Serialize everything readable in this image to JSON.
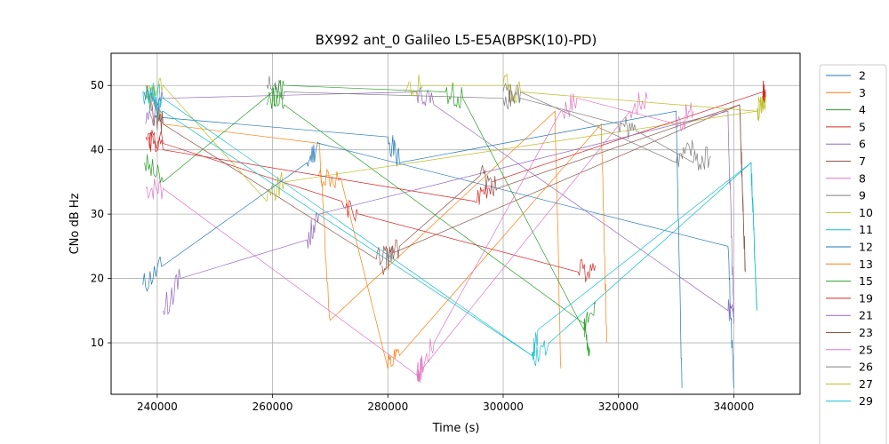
{
  "chart_data": {
    "type": "line",
    "title": "BX992 ant_0 Galileo L5-E5A(BPSK(10)-PD)",
    "xlabel": "Time (s)",
    "ylabel": "CNo dB Hz",
    "xlim": [
      232000,
      351500
    ],
    "ylim": [
      2,
      55
    ],
    "xticks": [
      240000,
      260000,
      280000,
      300000,
      320000,
      340000
    ],
    "yticks": [
      10,
      20,
      30,
      40,
      50
    ],
    "grid": true,
    "legend_position": "right-outside",
    "series": [
      {
        "name": "2",
        "color": "#1f77b4",
        "x": [
          237500,
          241000,
          280000,
          282000,
          330000,
          331000
        ],
        "y": [
          49,
          45,
          42,
          38,
          46,
          3
        ]
      },
      {
        "name": "3",
        "color": "#ff7f0e",
        "x": [
          238000,
          241000,
          268000,
          270000,
          309000,
          310000
        ],
        "y": [
          50,
          44,
          41,
          13.5,
          46,
          6
        ]
      },
      {
        "name": "4",
        "color": "#2ca02c",
        "x": [
          237800,
          241000,
          260000,
          262000,
          314000,
          315000
        ],
        "y": [
          38,
          35,
          49,
          47,
          13,
          9
        ]
      },
      {
        "name": "5",
        "color": "#d62728",
        "x": [
          238500,
          241000,
          272000,
          275000,
          313000,
          316000
        ],
        "y": [
          42,
          41,
          32,
          30,
          21,
          22
        ]
      },
      {
        "name": "6",
        "color": "#9467bd",
        "x": [
          238000,
          241000,
          285000,
          288000,
          339000,
          340000
        ],
        "y": [
          44,
          48,
          49,
          47,
          15,
          14
        ]
      },
      {
        "name": "7",
        "color": "#8c564b",
        "x": [
          239000,
          241000,
          278000,
          281000,
          341000,
          342000
        ],
        "y": [
          46,
          44,
          23,
          24,
          47,
          21
        ]
      },
      {
        "name": "8",
        "color": "#e377c2",
        "x": [
          238000,
          241000,
          285000,
          286000,
          322000,
          325000
        ],
        "y": [
          34,
          34,
          5,
          6,
          46,
          48
        ]
      },
      {
        "name": "9",
        "color": "#7f7f7f",
        "x": [
          259000,
          262000,
          300000,
          303000,
          330000,
          333000
        ],
        "y": [
          50,
          49,
          48,
          49,
          38,
          40
        ]
      },
      {
        "name": "10",
        "color": "#bcbd22",
        "x": [
          238000,
          241000,
          259000,
          262000,
          344000,
          345500
        ],
        "y": [
          49,
          50,
          32,
          35,
          46,
          48
        ]
      },
      {
        "name": "11",
        "color": "#17becf",
        "x": [
          237500,
          241000,
          305000,
          308000,
          343000,
          344000
        ],
        "y": [
          49,
          46,
          8,
          10,
          38,
          15
        ]
      },
      {
        "name": "12",
        "color": "#1f77b4",
        "x": [
          237500,
          241000,
          266000,
          268000,
          339000,
          340000
        ],
        "y": [
          19,
          22,
          38,
          41,
          25,
          3
        ]
      },
      {
        "name": "13",
        "color": "#ff7f0e",
        "x": [
          268000,
          272000,
          280000,
          282000,
          317000,
          318000
        ],
        "y": [
          36,
          35,
          6,
          8,
          44,
          10
        ]
      },
      {
        "name": "15",
        "color": "#2ca02c",
        "x": [
          259000,
          262000,
          290000,
          293000,
          314000,
          316000
        ],
        "y": [
          47,
          50,
          49,
          48,
          12,
          16
        ]
      },
      {
        "name": "19",
        "color": "#d62728",
        "x": [
          238000,
          241000,
          295000,
          298000,
          345000,
          345500
        ],
        "y": [
          42,
          40,
          32,
          35,
          49,
          48
        ]
      },
      {
        "name": "21",
        "color": "#9467bd",
        "x": [
          241000,
          244000,
          266000,
          268000,
          339000,
          340000
        ],
        "y": [
          15,
          20,
          26,
          30,
          46,
          13
        ]
      },
      {
        "name": "23",
        "color": "#8c564b",
        "x": [
          279000,
          282000,
          296000,
          299000,
          341000,
          342000
        ],
        "y": [
          22,
          25,
          36,
          34,
          47,
          21
        ]
      },
      {
        "name": "25",
        "color": "#e377c2",
        "x": [
          285000,
          288000,
          310000,
          313000,
          330000,
          333000
        ],
        "y": [
          5,
          10,
          46,
          48,
          44,
          46
        ]
      },
      {
        "name": "26",
        "color": "#7f7f7f",
        "x": [
          300000,
          303000,
          320000,
          323000,
          333000,
          336000
        ],
        "y": [
          49,
          48,
          44,
          43,
          38,
          39
        ]
      },
      {
        "name": "27",
        "color": "#bcbd22",
        "x": [
          283000,
          286000,
          300000,
          303000,
          344000,
          345500
        ],
        "y": [
          49,
          50,
          50,
          49,
          46,
          48
        ]
      },
      {
        "name": "29",
        "color": "#17becf",
        "x": [
          238000,
          241000,
          305000,
          306000,
          343000,
          344000
        ],
        "y": [
          49,
          48,
          8,
          12,
          38,
          15
        ]
      }
    ]
  }
}
